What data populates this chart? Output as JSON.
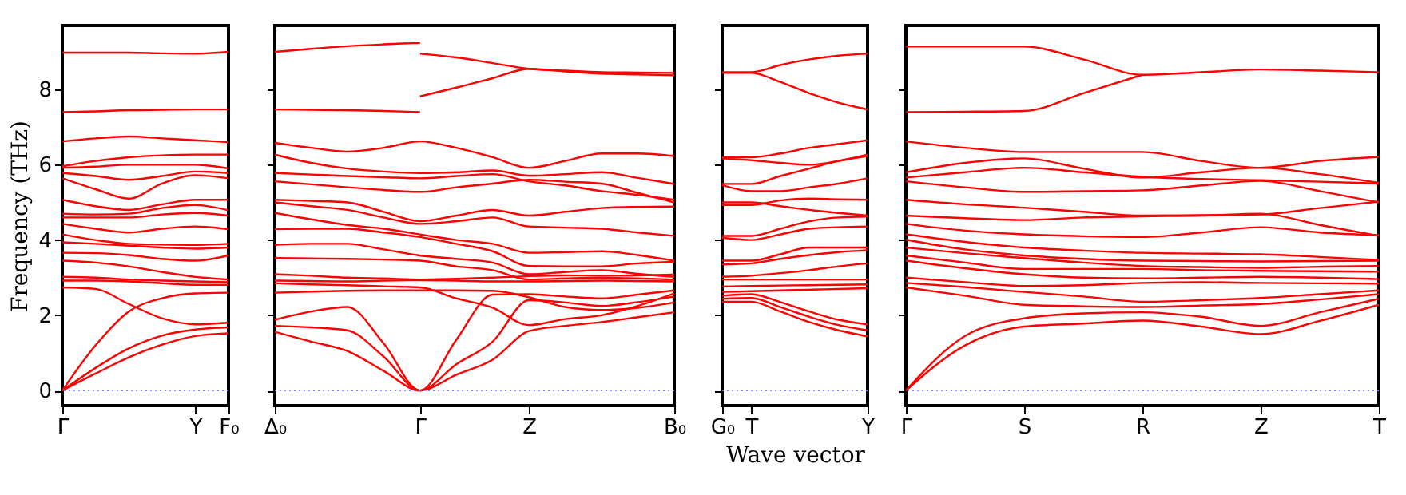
{
  "chart_data": [
    {
      "type": "line",
      "ylabel": "Frequency (THz)",
      "categories": [
        "Γ",
        null,
        null,
        null,
        "Y",
        "F₀"
      ],
      "ylim": [
        -0.4,
        9.7
      ],
      "yticks": [
        0,
        2,
        4,
        6,
        8
      ],
      "ref_lines": [
        {
          "axis": "y",
          "value": 0,
          "color": "#8080ff",
          "line_style": "dotted"
        }
      ],
      "series": [
        {
          "color": "#ff0000",
          "values": [
            0,
            0.45,
            0.88,
            1.22,
            1.45,
            1.52
          ]
        },
        {
          "color": "#ff0000",
          "values": [
            0,
            0.6,
            1.12,
            1.46,
            1.62,
            1.68
          ]
        },
        {
          "color": "#ff0000",
          "values": [
            0,
            1.2,
            2.1,
            2.45,
            2.58,
            2.6
          ]
        },
        {
          "color": "#ff0000",
          "values": [
            2.74,
            2.7,
            2.3,
            1.92,
            1.76,
            1.8
          ]
        },
        {
          "color": "#ff0000",
          "values": [
            2.92,
            2.92,
            2.9,
            2.85,
            2.81,
            2.81
          ]
        },
        {
          "color": "#ff0000",
          "values": [
            3.02,
            3.0,
            2.95,
            2.92,
            2.9,
            2.88
          ]
        },
        {
          "color": "#ff0000",
          "values": [
            3.45,
            3.4,
            3.3,
            3.15,
            3.02,
            2.95
          ]
        },
        {
          "color": "#ff0000",
          "values": [
            3.66,
            3.65,
            3.6,
            3.5,
            3.45,
            3.59
          ]
        },
        {
          "color": "#ff0000",
          "values": [
            3.94,
            3.9,
            3.85,
            3.8,
            3.77,
            3.8
          ]
        },
        {
          "color": "#ff0000",
          "values": [
            4.15,
            4.0,
            3.9,
            3.88,
            3.87,
            3.9
          ]
        },
        {
          "color": "#ff0000",
          "values": [
            4.43,
            4.3,
            4.2,
            4.3,
            4.36,
            4.29
          ]
        },
        {
          "color": "#ff0000",
          "values": [
            4.6,
            4.6,
            4.6,
            4.68,
            4.72,
            4.65
          ]
        },
        {
          "color": "#ff0000",
          "values": [
            4.7,
            4.68,
            4.7,
            4.85,
            4.93,
            4.79
          ]
        },
        {
          "color": "#ff0000",
          "values": [
            5.07,
            4.9,
            4.8,
            4.95,
            5.07,
            5.07
          ]
        },
        {
          "color": "#ff0000",
          "values": [
            5.64,
            5.35,
            5.1,
            5.5,
            5.72,
            5.64
          ]
        },
        {
          "color": "#ff0000",
          "values": [
            5.78,
            5.7,
            5.6,
            5.7,
            5.82,
            5.78
          ]
        },
        {
          "color": "#ff0000",
          "values": [
            5.92,
            5.95,
            6.0,
            6.0,
            6.0,
            5.9
          ]
        },
        {
          "color": "#ff0000",
          "values": [
            5.96,
            6.1,
            6.2,
            6.25,
            6.27,
            6.27
          ]
        },
        {
          "color": "#ff0000",
          "values": [
            6.62,
            6.7,
            6.75,
            6.7,
            6.65,
            6.6
          ]
        },
        {
          "color": "#ff0000",
          "values": [
            7.4,
            7.42,
            7.45,
            7.46,
            7.47,
            7.47
          ]
        },
        {
          "color": "#ff0000",
          "values": [
            8.98,
            8.98,
            8.98,
            8.96,
            8.95,
            9.0
          ]
        }
      ]
    },
    {
      "type": "line",
      "tick_labels": "x",
      "categories": [
        "Δ₀",
        null,
        null,
        null,
        "Γ",
        null,
        null,
        "Z",
        null,
        null,
        null,
        "B₀"
      ],
      "ylim": [
        -0.4,
        9.7
      ],
      "yticks": [
        0,
        2,
        4,
        6,
        8
      ],
      "ref_lines": [
        {
          "axis": "y",
          "value": 0,
          "color": "#8080ff",
          "line_style": "dotted"
        }
      ],
      "series": [
        {
          "color": "#ff0000",
          "values": [
            9.0,
            9.08,
            9.15,
            9.2,
            9.24,
            null,
            null,
            null,
            null,
            null,
            null,
            null
          ]
        },
        {
          "color": "#ff0000",
          "values": [
            7.47,
            7.46,
            7.45,
            7.43,
            7.4,
            null,
            null,
            null,
            null,
            null,
            null,
            null
          ]
        },
        {
          "color": "#ff0000",
          "values": [
            null,
            null,
            null,
            null,
            8.95,
            8.85,
            8.7,
            8.55,
            8.5,
            8.46,
            8.45,
            8.44
          ]
        },
        {
          "color": "#ff0000",
          "values": [
            null,
            null,
            null,
            null,
            7.82,
            8.05,
            8.3,
            8.55,
            8.48,
            8.42,
            8.4,
            8.38
          ]
        },
        {
          "color": "#ff0000",
          "values": [
            6.58,
            6.45,
            6.35,
            6.45,
            6.62,
            6.45,
            6.2,
            5.92,
            6.1,
            6.3,
            6.3,
            6.23
          ]
        },
        {
          "color": "#ff0000",
          "values": [
            6.27,
            6.05,
            5.9,
            5.82,
            5.78,
            5.8,
            5.85,
            5.71,
            5.75,
            5.8,
            5.65,
            5.49
          ]
        },
        {
          "color": "#ff0000",
          "values": [
            5.78,
            5.74,
            5.7,
            5.67,
            5.64,
            5.7,
            5.75,
            5.56,
            5.45,
            5.3,
            5.2,
            5.07
          ]
        },
        {
          "color": "#ff0000",
          "values": [
            5.56,
            5.48,
            5.4,
            5.33,
            5.28,
            5.4,
            5.5,
            5.6,
            5.55,
            5.5,
            5.25,
            5.0
          ]
        },
        {
          "color": "#ff0000",
          "values": [
            5.07,
            5.04,
            5.0,
            4.75,
            4.5,
            4.65,
            4.8,
            4.65,
            4.75,
            4.85,
            4.88,
            4.89
          ]
        },
        {
          "color": "#ff0000",
          "values": [
            5.0,
            4.9,
            4.8,
            4.6,
            4.43,
            4.5,
            4.6,
            4.36,
            4.33,
            4.3,
            4.2,
            4.11
          ]
        },
        {
          "color": "#ff0000",
          "values": [
            4.72,
            4.55,
            4.4,
            4.3,
            4.15,
            4.0,
            3.9,
            3.66,
            3.68,
            3.7,
            3.6,
            3.45
          ]
        },
        {
          "color": "#ff0000",
          "values": [
            4.29,
            4.3,
            4.3,
            4.2,
            4.08,
            3.9,
            3.7,
            3.31,
            3.3,
            3.3,
            3.38,
            3.42
          ]
        },
        {
          "color": "#ff0000",
          "values": [
            3.87,
            3.9,
            3.9,
            3.75,
            3.59,
            3.5,
            3.4,
            3.09,
            3.15,
            3.2,
            3.1,
            3.02
          ]
        },
        {
          "color": "#ff0000",
          "values": [
            3.52,
            3.51,
            3.5,
            3.48,
            3.45,
            3.3,
            3.2,
            2.95,
            2.98,
            3.0,
            2.98,
            2.95
          ]
        },
        {
          "color": "#ff0000",
          "values": [
            3.09,
            3.05,
            3.0,
            2.98,
            2.95,
            2.97,
            3.0,
            3.04,
            3.06,
            3.05,
            3.06,
            3.08
          ]
        },
        {
          "color": "#ff0000",
          "values": [
            2.92,
            2.91,
            2.9,
            2.92,
            2.93,
            2.92,
            2.9,
            2.9,
            2.91,
            2.92,
            2.91,
            2.9
          ]
        },
        {
          "color": "#ff0000",
          "values": [
            2.85,
            2.82,
            2.8,
            2.77,
            2.74,
            2.45,
            2.2,
            1.74,
            1.9,
            2.0,
            2.25,
            2.58
          ]
        },
        {
          "color": "#ff0000",
          "values": [
            2.6,
            2.63,
            2.65,
            2.66,
            2.66,
            2.66,
            2.65,
            2.48,
            2.22,
            2.14,
            2.2,
            2.34
          ]
        },
        {
          "color": "#ff0000",
          "values": [
            1.56,
            1.3,
            1.05,
            0.52,
            0,
            0.42,
            0.82,
            1.58,
            1.72,
            1.82,
            1.95,
            2.08
          ]
        },
        {
          "color": "#ff0000",
          "values": [
            1.72,
            1.68,
            1.6,
            0.9,
            0,
            0.7,
            1.3,
            2.4,
            2.34,
            2.25,
            2.35,
            2.5
          ]
        },
        {
          "color": "#ff0000",
          "values": [
            1.88,
            2.1,
            2.22,
            1.25,
            0,
            1.35,
            2.55,
            2.56,
            2.5,
            2.45,
            2.55,
            2.66
          ]
        }
      ]
    },
    {
      "type": "line",
      "tick_labels": "x",
      "xlabel": "Wave vector",
      "categories": [
        "G₀",
        "T",
        null,
        null,
        null,
        "Y"
      ],
      "ylim": [
        -0.4,
        9.7
      ],
      "yticks": [
        0,
        2,
        4,
        6,
        8
      ],
      "ref_lines": [
        {
          "axis": "y",
          "value": 0,
          "color": "#8080ff",
          "line_style": "dotted"
        }
      ],
      "series": [
        {
          "color": "#ff0000",
          "values": [
            8.46,
            8.46,
            8.65,
            8.8,
            8.9,
            8.95
          ]
        },
        {
          "color": "#ff0000",
          "values": [
            8.44,
            8.44,
            8.2,
            7.9,
            7.65,
            7.47
          ]
        },
        {
          "color": "#ff0000",
          "values": [
            6.2,
            6.2,
            6.3,
            6.45,
            6.55,
            6.65
          ]
        },
        {
          "color": "#ff0000",
          "values": [
            6.17,
            6.12,
            6.05,
            6.0,
            6.1,
            6.27
          ]
        },
        {
          "color": "#ff0000",
          "values": [
            5.49,
            5.49,
            5.7,
            5.9,
            6.1,
            6.23
          ]
        },
        {
          "color": "#ff0000",
          "values": [
            5.46,
            5.3,
            5.3,
            5.4,
            5.5,
            5.64
          ]
        },
        {
          "color": "#ff0000",
          "values": [
            5.0,
            5.0,
            4.9,
            4.8,
            4.72,
            4.65
          ]
        },
        {
          "color": "#ff0000",
          "values": [
            4.93,
            4.93,
            5.05,
            5.1,
            5.08,
            5.07
          ]
        },
        {
          "color": "#ff0000",
          "values": [
            4.11,
            4.11,
            4.3,
            4.5,
            4.6,
            4.62
          ]
        },
        {
          "color": "#ff0000",
          "values": [
            4.06,
            4.0,
            4.15,
            4.3,
            4.34,
            4.36
          ]
        },
        {
          "color": "#ff0000",
          "values": [
            3.45,
            3.45,
            3.62,
            3.8,
            3.8,
            3.8
          ]
        },
        {
          "color": "#ff0000",
          "values": [
            3.35,
            3.38,
            3.5,
            3.6,
            3.68,
            3.73
          ]
        },
        {
          "color": "#ff0000",
          "values": [
            3.02,
            3.05,
            3.12,
            3.2,
            3.3,
            3.38
          ]
        },
        {
          "color": "#ff0000",
          "values": [
            2.95,
            2.95,
            2.95,
            2.95,
            2.95,
            2.95
          ]
        },
        {
          "color": "#ff0000",
          "values": [
            2.76,
            2.78,
            2.79,
            2.8,
            2.81,
            2.82
          ]
        },
        {
          "color": "#ff0000",
          "values": [
            2.62,
            2.64,
            2.66,
            2.68,
            2.7,
            2.72
          ]
        },
        {
          "color": "#ff0000",
          "values": [
            2.52,
            2.56,
            2.35,
            2.1,
            1.88,
            1.76
          ]
        },
        {
          "color": "#ff0000",
          "values": [
            2.44,
            2.46,
            2.22,
            1.96,
            1.74,
            1.6
          ]
        },
        {
          "color": "#ff0000",
          "values": [
            2.36,
            2.36,
            2.1,
            1.82,
            1.6,
            1.44
          ]
        }
      ]
    },
    {
      "type": "line",
      "tick_labels": "x",
      "categories": [
        "Γ",
        null,
        "S",
        null,
        "R",
        null,
        "Z",
        null,
        "T"
      ],
      "ylim": [
        -0.4,
        9.7
      ],
      "yticks": [
        0,
        2,
        4,
        6,
        8
      ],
      "ref_lines": [
        {
          "axis": "y",
          "value": 0,
          "color": "#8080ff",
          "line_style": "dotted"
        }
      ],
      "series": [
        {
          "color": "#ff0000",
          "values": [
            9.14,
            9.14,
            9.14,
            8.8,
            8.39,
            8.46,
            8.53,
            8.5,
            8.46
          ]
        },
        {
          "color": "#ff0000",
          "values": [
            7.4,
            7.41,
            7.43,
            7.9,
            8.39,
            null,
            null,
            null,
            null
          ]
        },
        {
          "color": "#ff0000",
          "values": [
            6.62,
            6.45,
            6.34,
            6.34,
            6.34,
            6.1,
            5.92,
            6.1,
            6.21
          ]
        },
        {
          "color": "#ff0000",
          "values": [
            5.8,
            6.05,
            6.17,
            5.9,
            5.66,
            5.8,
            5.92,
            5.75,
            5.52
          ]
        },
        {
          "color": "#ff0000",
          "values": [
            5.66,
            5.8,
            5.92,
            5.8,
            5.68,
            5.62,
            5.59,
            5.55,
            5.5
          ]
        },
        {
          "color": "#ff0000",
          "values": [
            5.56,
            5.4,
            5.28,
            5.3,
            5.32,
            5.45,
            5.57,
            5.3,
            5.0
          ]
        },
        {
          "color": "#ff0000",
          "values": [
            5.07,
            4.95,
            4.86,
            4.75,
            4.65,
            4.66,
            4.68,
            4.85,
            5.02
          ]
        },
        {
          "color": "#ff0000",
          "values": [
            4.65,
            4.58,
            4.53,
            4.6,
            4.63,
            4.65,
            4.7,
            4.4,
            4.11
          ]
        },
        {
          "color": "#ff0000",
          "values": [
            4.43,
            4.25,
            4.15,
            4.1,
            4.08,
            4.2,
            4.34,
            4.2,
            4.13
          ]
        },
        {
          "color": "#ff0000",
          "values": [
            4.15,
            3.95,
            3.8,
            3.72,
            3.66,
            3.64,
            3.62,
            3.55,
            3.47
          ]
        },
        {
          "color": "#ff0000",
          "values": [
            4.01,
            3.75,
            3.59,
            3.5,
            3.45,
            3.44,
            3.43,
            3.44,
            3.45
          ]
        },
        {
          "color": "#ff0000",
          "values": [
            3.8,
            3.65,
            3.52,
            3.4,
            3.31,
            3.28,
            3.26,
            3.29,
            3.31
          ]
        },
        {
          "color": "#ff0000",
          "values": [
            3.59,
            3.4,
            3.23,
            3.23,
            3.23,
            3.2,
            3.18,
            3.17,
            3.16
          ]
        },
        {
          "color": "#ff0000",
          "values": [
            3.45,
            3.25,
            3.09,
            3.0,
            2.98,
            3.0,
            3.02,
            3.0,
            2.96
          ]
        },
        {
          "color": "#ff0000",
          "values": [
            3.0,
            2.88,
            2.78,
            2.8,
            2.86,
            2.88,
            2.86,
            2.85,
            2.84
          ]
        },
        {
          "color": "#ff0000",
          "values": [
            2.86,
            2.75,
            2.62,
            2.5,
            2.36,
            2.4,
            2.46,
            2.56,
            2.66
          ]
        },
        {
          "color": "#ff0000",
          "values": [
            2.74,
            2.52,
            2.28,
            2.24,
            2.22,
            2.26,
            2.3,
            2.42,
            2.56
          ]
        },
        {
          "color": "#ff0000",
          "values": [
            0,
            1.45,
            1.92,
            2.05,
            2.08,
            1.96,
            1.72,
            2.08,
            2.44
          ]
        },
        {
          "color": "#ff0000",
          "values": [
            0,
            1.2,
            1.7,
            1.78,
            1.86,
            1.7,
            1.5,
            1.85,
            2.28
          ]
        }
      ]
    }
  ]
}
